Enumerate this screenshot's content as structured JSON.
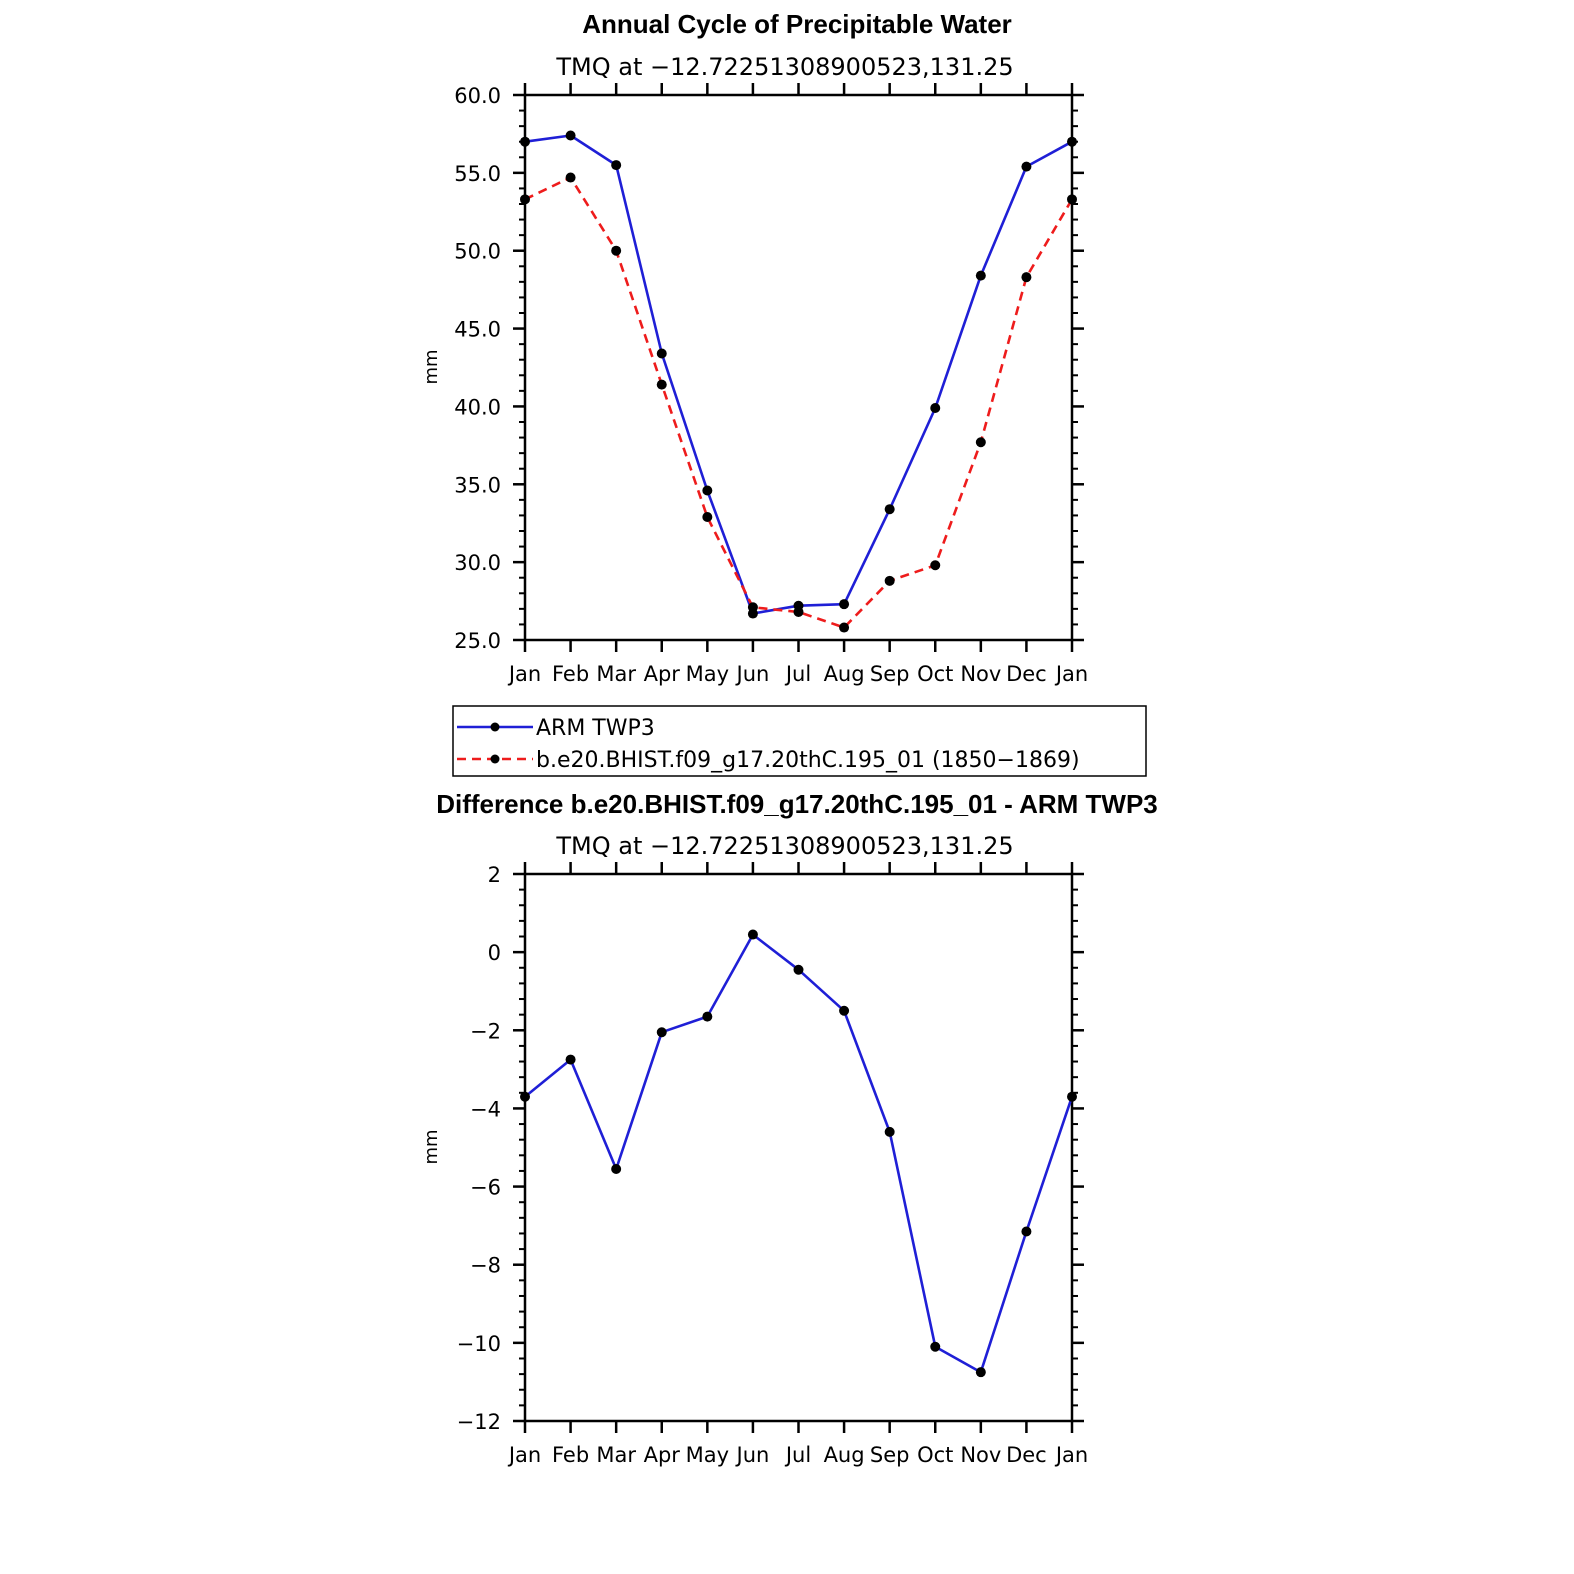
{
  "colors": {
    "arm": "#1f1fd6",
    "model": "#ee1c1c",
    "marker": "#000000"
  },
  "chart_data": [
    {
      "type": "line",
      "title": "Annual Cycle of Precipitable Water",
      "subtitle": "TMQ  at  −12.72251308900523,131.25",
      "xlabel": "",
      "ylabel": "mm",
      "categories": [
        "Jan",
        "Feb",
        "Mar",
        "Apr",
        "May",
        "Jun",
        "Jul",
        "Aug",
        "Sep",
        "Oct",
        "Nov",
        "Dec",
        "Jan"
      ],
      "ylim": [
        25,
        60
      ],
      "yticks": [
        25,
        30,
        35,
        40,
        45,
        50,
        55,
        60
      ],
      "ytick_labels": [
        "25.0",
        "30.0",
        "35.0",
        "40.0",
        "45.0",
        "50.0",
        "55.0",
        "60.0"
      ],
      "series": [
        {
          "name": "ARM  TWP3",
          "style": "solid",
          "color": "arm",
          "values": [
            57.0,
            57.4,
            55.5,
            43.4,
            34.6,
            26.7,
            27.2,
            27.3,
            33.4,
            39.9,
            48.4,
            55.4,
            57.0
          ]
        },
        {
          "name": "b.e20.BHIST.f09_g17.20thC.195_01  (1850−1869)",
          "style": "dashed",
          "color": "model",
          "values": [
            53.3,
            54.7,
            50.0,
            41.4,
            32.9,
            27.1,
            26.8,
            25.8,
            28.8,
            29.8,
            37.7,
            48.3,
            53.3
          ]
        }
      ]
    },
    {
      "type": "line",
      "title": "Difference b.e20.BHIST.f09_g17.20thC.195_01 - ARM TWP3",
      "subtitle": "TMQ  at  −12.72251308900523,131.25",
      "xlabel": "",
      "ylabel": "mm",
      "categories": [
        "Jan",
        "Feb",
        "Mar",
        "Apr",
        "May",
        "Jun",
        "Jul",
        "Aug",
        "Sep",
        "Oct",
        "Nov",
        "Dec",
        "Jan"
      ],
      "ylim": [
        -12,
        2
      ],
      "yticks": [
        -12,
        -10,
        -8,
        -6,
        -4,
        -2,
        0,
        2
      ],
      "ytick_labels": [
        "−12",
        "−10",
        "−8",
        "−6",
        "−4",
        "−2",
        "0",
        "2"
      ],
      "series": [
        {
          "name": "Difference",
          "style": "solid",
          "color": "arm",
          "values": [
            -3.7,
            -2.75,
            -5.55,
            -2.05,
            -1.65,
            0.45,
            -0.45,
            -1.5,
            -4.6,
            -10.1,
            -10.75,
            -7.15,
            -3.7
          ]
        }
      ]
    }
  ]
}
